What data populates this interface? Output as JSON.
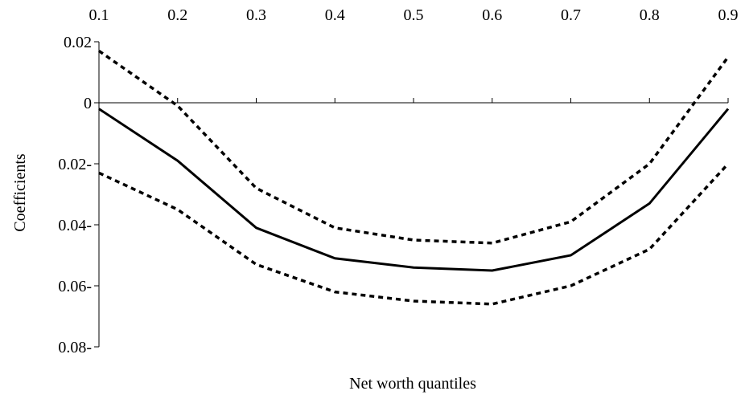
{
  "chart_data": {
    "type": "line",
    "title": "",
    "xlabel": "Net worth quantiles",
    "ylabel": "Coefficients",
    "x": [
      0.1,
      0.2,
      0.3,
      0.4,
      0.5,
      0.6,
      0.7,
      0.8,
      0.9
    ],
    "x_tick_labels": [
      "0.1",
      "0.2",
      "0.3",
      "0.4",
      "0.5",
      "0.6",
      "0.7",
      "0.8",
      "0.9"
    ],
    "y_ticks": [
      0.02,
      0,
      -0.02,
      -0.04,
      -0.06,
      -0.08
    ],
    "y_tick_labels": [
      "0.02",
      "0",
      "0.02-",
      "0.04-",
      "0.06-",
      "0.08-"
    ],
    "ylim": [
      -0.08,
      0.02
    ],
    "x_axis_position": "top",
    "x_axis_crosses_at": 0,
    "grid": false,
    "series": [
      {
        "style": "solid",
        "values": [
          -0.002,
          -0.019,
          -0.041,
          -0.051,
          -0.054,
          -0.055,
          -0.05,
          -0.033,
          -0.002
        ]
      },
      {
        "style": "dashed",
        "values": [
          0.017,
          -0.001,
          -0.028,
          -0.041,
          -0.045,
          -0.046,
          -0.039,
          -0.02,
          0.015
        ]
      },
      {
        "style": "dashed",
        "values": [
          -0.023,
          -0.035,
          -0.053,
          -0.062,
          -0.065,
          -0.066,
          -0.06,
          -0.048,
          -0.02
        ]
      }
    ]
  }
}
